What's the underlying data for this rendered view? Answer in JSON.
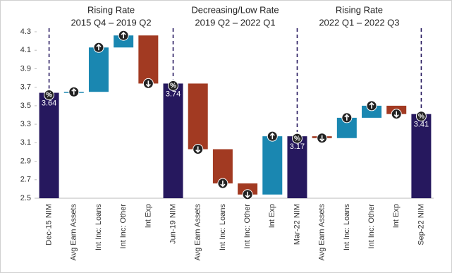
{
  "chart_data": {
    "type": "waterfall",
    "groups": [
      {
        "title": "Rising Rate",
        "subtitle": "2015 Q4 – 2019 Q2"
      },
      {
        "title": "Decreasing/Low Rate",
        "subtitle": "2019 Q2 – 2022 Q1"
      },
      {
        "title": "Rising Rate",
        "subtitle": "2022 Q1 – 2022 Q3"
      }
    ],
    "categories": [
      "Dec-15 NIM",
      "Avg Earn Assets",
      "Int Inc: Loans",
      "Int Inc: Other",
      "Int Exp",
      "Jun-19 NIM",
      "Avg Earn Assets",
      "Int Inc: Loans",
      "Int Inc: Other",
      "Int Exp",
      "Mar-22 NIM",
      "Avg Earn Assets",
      "Int Inc: Loans",
      "Int Inc: Other",
      "Int Exp",
      "Sep-22 NIM"
    ],
    "values": [
      3.64,
      0.01,
      0.48,
      0.13,
      -0.52,
      3.74,
      -0.71,
      -0.37,
      -0.12,
      0.63,
      3.17,
      -0.02,
      0.22,
      0.13,
      -0.09,
      3.41
    ],
    "value_labels": [
      "3.64",
      null,
      null,
      null,
      null,
      "3.74",
      null,
      null,
      null,
      null,
      "3.17",
      null,
      null,
      null,
      null,
      "3.41"
    ],
    "colors": {
      "total": "#26185e",
      "increase": "#1a87b1",
      "decrease": "#a23a22"
    },
    "ylim": [
      2.5,
      4.3
    ],
    "yticks": [
      2.5,
      2.7,
      2.9,
      3.1,
      3.3,
      3.5,
      3.7,
      3.9,
      4.1,
      4.3
    ],
    "grid": false
  }
}
